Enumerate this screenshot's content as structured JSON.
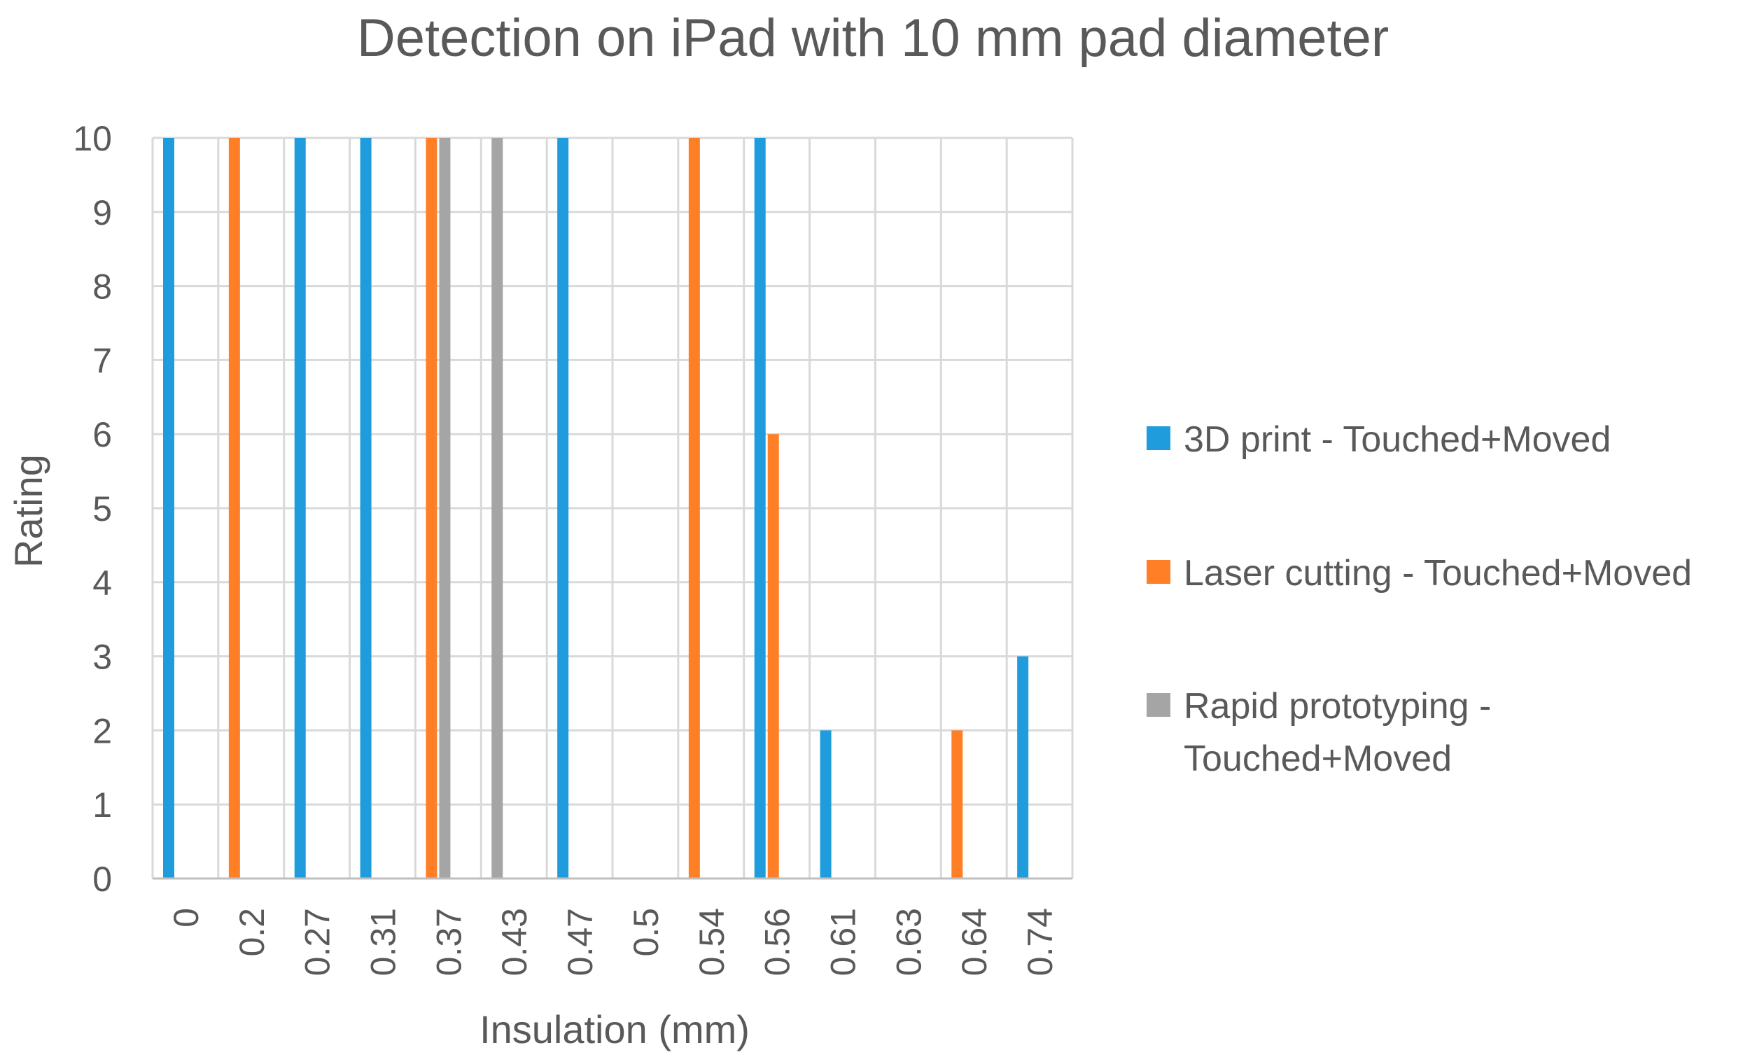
{
  "chart_data": {
    "type": "bar",
    "title": "Detection on iPad with 10 mm pad diameter",
    "xlabel": "Insulation (mm)",
    "ylabel": "Rating",
    "categories": [
      "0",
      "0.2",
      "0.27",
      "0.31",
      "0.37",
      "0.43",
      "0.47",
      "0.5",
      "0.54",
      "0.56",
      "0.61",
      "0.63",
      "0.64",
      "0.74"
    ],
    "ylim": [
      0,
      10
    ],
    "yticks": [
      "0",
      "1",
      "2",
      "3",
      "4",
      "5",
      "6",
      "7",
      "8",
      "9",
      "10"
    ],
    "grid": true,
    "legend_position": "right",
    "series": [
      {
        "name": "3D print - Touched+Moved",
        "color": "#1F9CDB",
        "values": [
          10,
          null,
          10,
          10,
          null,
          null,
          10,
          null,
          null,
          10,
          2,
          null,
          null,
          3
        ]
      },
      {
        "name": "Laser cutting - Touched+Moved",
        "color": "#FF7F27",
        "values": [
          null,
          10,
          null,
          null,
          10,
          null,
          null,
          null,
          10,
          6,
          null,
          null,
          2,
          null
        ]
      },
      {
        "name": "Rapid prototyping - Touched+Moved",
        "color": "#A5A5A5",
        "values": [
          null,
          null,
          null,
          null,
          10,
          10,
          null,
          null,
          null,
          null,
          null,
          null,
          null,
          null
        ]
      }
    ],
    "legend_lines": [
      [
        "3D print - Touched+Moved"
      ],
      [
        "Laser cutting - Touched+Moved"
      ],
      [
        "Rapid prototyping -",
        "Touched+Moved"
      ]
    ]
  }
}
